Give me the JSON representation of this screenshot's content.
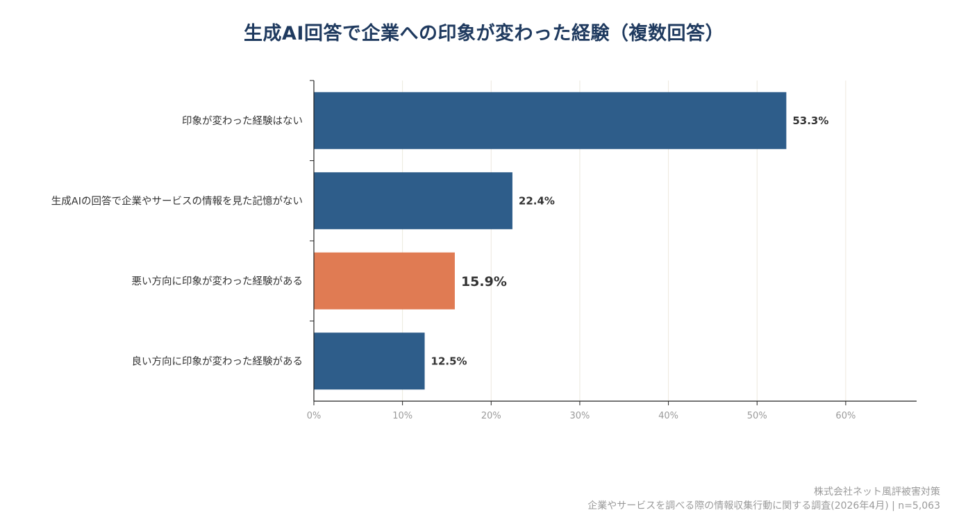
{
  "chart_data": {
    "type": "bar",
    "orientation": "horizontal",
    "title": "生成AI回答で企業への印象が変わった経験（複数回答）",
    "categories": [
      "印象が変わった経験はない",
      "生成AIの回答で企業やサービスの情報を見た記憶がない",
      "悪い方向に印象が変わった経験がある",
      "良い方向に印象が変わった経験がある"
    ],
    "values": [
      53.3,
      22.4,
      15.9,
      12.5
    ],
    "value_labels": [
      "53.3%",
      "22.4%",
      "15.9%",
      "12.5%"
    ],
    "highlight_index": 2,
    "xlim": [
      0,
      68
    ],
    "ticks": [
      0,
      10,
      20,
      30,
      40,
      50,
      60
    ],
    "tick_labels": [
      "0%",
      "10%",
      "20%",
      "30%",
      "40%",
      "50%",
      "60%"
    ],
    "grid": "vertical",
    "xlabel": "",
    "ylabel": ""
  },
  "colors": {
    "bar": "#2e5d8a",
    "highlight": "#e07b53",
    "title": "#1f3a5f",
    "label": "#333333",
    "tick": "#9a9a9a",
    "grid": "#ece8de",
    "axis": "#222222"
  },
  "footer": {
    "company": "株式会社ネット風評被害対策",
    "source": "企業やサービスを調べる際の情報収集行動に関する調査(2026年4月) | n=5,063"
  }
}
